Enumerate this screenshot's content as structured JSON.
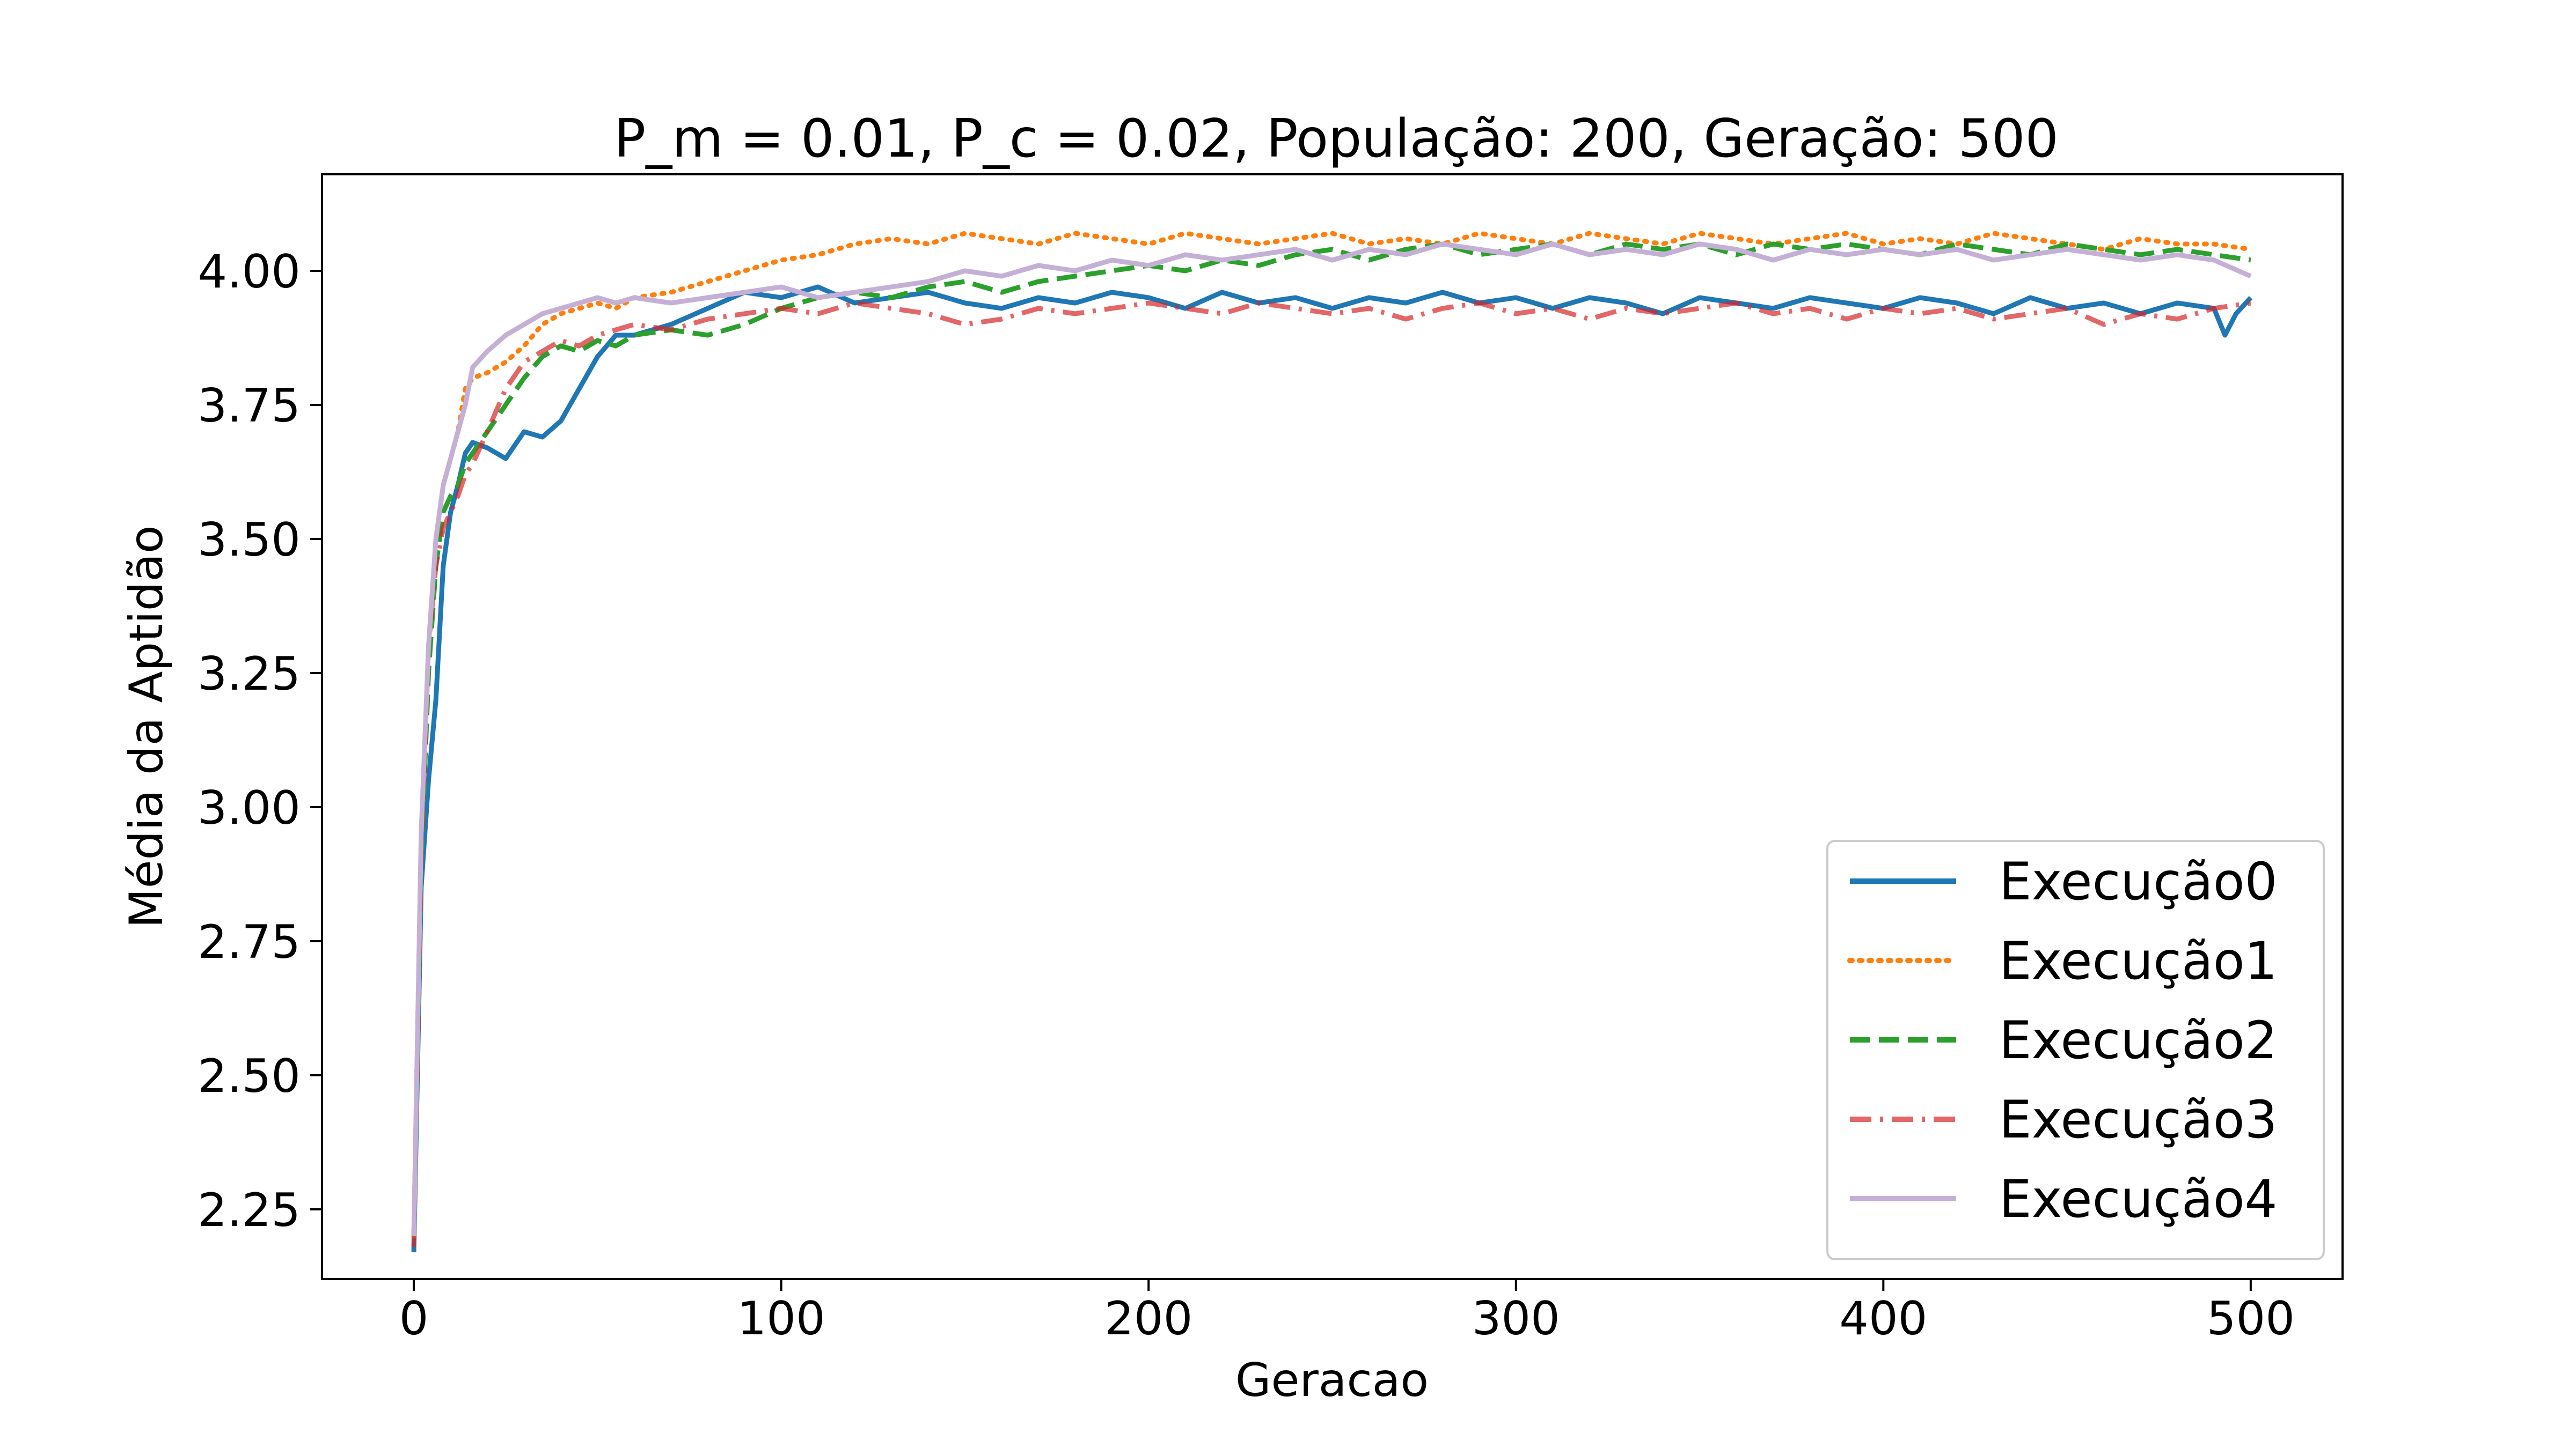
{
  "chart_data": {
    "type": "line",
    "title": "P_m = 0.01, P_c = 0.02, População: 200, Geração: 500",
    "xlabel": "Geracao",
    "ylabel": "Média da Aptidão",
    "xlim": [
      -25,
      525
    ],
    "ylim": [
      2.12,
      4.18
    ],
    "xticks": [
      0,
      100,
      200,
      300,
      400,
      500
    ],
    "yticks": [
      2.25,
      2.5,
      2.75,
      3.0,
      3.25,
      3.5,
      3.75,
      4.0
    ],
    "xtick_labels": [
      "0",
      "100",
      "200",
      "300",
      "400",
      "500"
    ],
    "ytick_labels": [
      "2.25",
      "2.50",
      "2.75",
      "3.00",
      "3.25",
      "3.50",
      "3.75",
      "4.00"
    ],
    "grid": false,
    "legend_position": "lower-right",
    "series": [
      {
        "name": "Execução0",
        "color": "#1f77b4",
        "style": "solid",
        "x": [
          0,
          2,
          4,
          6,
          8,
          10,
          12,
          14,
          16,
          20,
          25,
          30,
          35,
          40,
          45,
          50,
          55,
          60,
          70,
          80,
          90,
          100,
          110,
          120,
          130,
          140,
          150,
          160,
          170,
          180,
          190,
          200,
          210,
          220,
          230,
          240,
          250,
          260,
          270,
          280,
          290,
          300,
          310,
          320,
          330,
          340,
          350,
          360,
          370,
          380,
          390,
          400,
          410,
          420,
          430,
          440,
          450,
          460,
          470,
          480,
          490,
          493,
          496,
          500
        ],
        "y": [
          2.17,
          2.85,
          3.05,
          3.2,
          3.45,
          3.55,
          3.6,
          3.66,
          3.68,
          3.67,
          3.65,
          3.7,
          3.69,
          3.72,
          3.78,
          3.84,
          3.88,
          3.88,
          3.9,
          3.93,
          3.96,
          3.95,
          3.97,
          3.94,
          3.95,
          3.96,
          3.94,
          3.93,
          3.95,
          3.94,
          3.96,
          3.95,
          3.93,
          3.96,
          3.94,
          3.95,
          3.93,
          3.95,
          3.94,
          3.96,
          3.94,
          3.95,
          3.93,
          3.95,
          3.94,
          3.92,
          3.95,
          3.94,
          3.93,
          3.95,
          3.94,
          3.93,
          3.95,
          3.94,
          3.92,
          3.95,
          3.93,
          3.94,
          3.92,
          3.94,
          3.93,
          3.88,
          3.92,
          3.95
        ]
      },
      {
        "name": "Execução1",
        "color": "#ff7f0e",
        "style": "dotted",
        "x": [
          0,
          2,
          4,
          6,
          8,
          10,
          12,
          14,
          16,
          20,
          25,
          30,
          35,
          40,
          45,
          50,
          55,
          60,
          70,
          80,
          90,
          100,
          110,
          120,
          130,
          140,
          150,
          160,
          170,
          180,
          190,
          200,
          210,
          220,
          230,
          240,
          250,
          260,
          270,
          280,
          290,
          300,
          310,
          320,
          330,
          340,
          350,
          360,
          370,
          380,
          390,
          400,
          410,
          420,
          430,
          440,
          450,
          460,
          470,
          480,
          490,
          500
        ],
        "y": [
          2.2,
          2.95,
          3.3,
          3.5,
          3.6,
          3.65,
          3.7,
          3.78,
          3.8,
          3.81,
          3.83,
          3.86,
          3.9,
          3.92,
          3.93,
          3.94,
          3.93,
          3.95,
          3.96,
          3.98,
          4.0,
          4.02,
          4.03,
          4.05,
          4.06,
          4.05,
          4.07,
          4.06,
          4.05,
          4.07,
          4.06,
          4.05,
          4.07,
          4.06,
          4.05,
          4.06,
          4.07,
          4.05,
          4.06,
          4.05,
          4.07,
          4.06,
          4.05,
          4.07,
          4.06,
          4.05,
          4.07,
          4.06,
          4.05,
          4.06,
          4.07,
          4.05,
          4.06,
          4.05,
          4.07,
          4.06,
          4.05,
          4.04,
          4.06,
          4.05,
          4.05,
          4.04
        ]
      },
      {
        "name": "Execução2",
        "color": "#2ca02c",
        "style": "dashed",
        "x": [
          0,
          2,
          4,
          6,
          8,
          10,
          12,
          14,
          16,
          20,
          25,
          30,
          35,
          40,
          45,
          50,
          55,
          60,
          70,
          80,
          90,
          100,
          110,
          120,
          130,
          140,
          150,
          160,
          170,
          180,
          190,
          200,
          210,
          220,
          230,
          240,
          250,
          260,
          270,
          280,
          290,
          300,
          310,
          320,
          330,
          340,
          350,
          360,
          370,
          380,
          390,
          400,
          410,
          420,
          430,
          440,
          450,
          460,
          470,
          480,
          490,
          500
        ],
        "y": [
          2.2,
          2.9,
          3.25,
          3.45,
          3.55,
          3.58,
          3.6,
          3.64,
          3.66,
          3.7,
          3.75,
          3.8,
          3.84,
          3.86,
          3.85,
          3.87,
          3.86,
          3.88,
          3.89,
          3.88,
          3.9,
          3.93,
          3.95,
          3.96,
          3.95,
          3.97,
          3.98,
          3.96,
          3.98,
          3.99,
          4.0,
          4.01,
          4.0,
          4.02,
          4.01,
          4.03,
          4.04,
          4.02,
          4.04,
          4.05,
          4.03,
          4.04,
          4.05,
          4.03,
          4.05,
          4.04,
          4.05,
          4.03,
          4.05,
          4.04,
          4.05,
          4.04,
          4.03,
          4.05,
          4.04,
          4.03,
          4.05,
          4.04,
          4.03,
          4.04,
          4.03,
          4.02
        ]
      },
      {
        "name": "Execução3",
        "color": "#d62728",
        "style": "dashdot",
        "x": [
          0,
          2,
          4,
          6,
          8,
          10,
          12,
          14,
          16,
          20,
          25,
          30,
          35,
          40,
          45,
          50,
          55,
          60,
          70,
          80,
          90,
          100,
          110,
          120,
          130,
          140,
          150,
          160,
          170,
          180,
          190,
          200,
          210,
          220,
          230,
          240,
          250,
          260,
          270,
          280,
          290,
          300,
          310,
          320,
          330,
          340,
          350,
          360,
          370,
          380,
          390,
          400,
          410,
          420,
          430,
          440,
          450,
          460,
          470,
          480,
          490,
          500
        ],
        "y": [
          2.18,
          2.9,
          3.3,
          3.45,
          3.52,
          3.55,
          3.58,
          3.62,
          3.64,
          3.7,
          3.78,
          3.83,
          3.85,
          3.87,
          3.86,
          3.88,
          3.89,
          3.9,
          3.89,
          3.91,
          3.92,
          3.93,
          3.92,
          3.94,
          3.93,
          3.92,
          3.9,
          3.91,
          3.93,
          3.92,
          3.93,
          3.94,
          3.93,
          3.92,
          3.94,
          3.93,
          3.92,
          3.93,
          3.91,
          3.93,
          3.94,
          3.92,
          3.93,
          3.91,
          3.93,
          3.92,
          3.93,
          3.94,
          3.92,
          3.93,
          3.91,
          3.93,
          3.92,
          3.93,
          3.91,
          3.92,
          3.93,
          3.9,
          3.92,
          3.91,
          3.93,
          3.94
        ]
      },
      {
        "name": "Execução4",
        "color": "#c5b0d5",
        "style": "solid",
        "x": [
          0,
          2,
          4,
          6,
          8,
          10,
          12,
          14,
          16,
          20,
          25,
          30,
          35,
          40,
          45,
          50,
          55,
          60,
          70,
          80,
          90,
          100,
          110,
          120,
          130,
          140,
          150,
          160,
          170,
          180,
          190,
          200,
          210,
          220,
          230,
          240,
          250,
          260,
          270,
          280,
          290,
          300,
          310,
          320,
          330,
          340,
          350,
          360,
          370,
          380,
          390,
          400,
          410,
          420,
          430,
          440,
          450,
          460,
          470,
          480,
          490,
          500
        ],
        "y": [
          2.2,
          2.95,
          3.3,
          3.5,
          3.6,
          3.65,
          3.7,
          3.75,
          3.82,
          3.85,
          3.88,
          3.9,
          3.92,
          3.93,
          3.94,
          3.95,
          3.94,
          3.95,
          3.94,
          3.95,
          3.96,
          3.97,
          3.95,
          3.96,
          3.97,
          3.98,
          4.0,
          3.99,
          4.01,
          4.0,
          4.02,
          4.01,
          4.03,
          4.02,
          4.03,
          4.04,
          4.02,
          4.04,
          4.03,
          4.05,
          4.04,
          4.03,
          4.05,
          4.03,
          4.04,
          4.03,
          4.05,
          4.04,
          4.02,
          4.04,
          4.03,
          4.04,
          4.03,
          4.04,
          4.02,
          4.03,
          4.04,
          4.03,
          4.02,
          4.03,
          4.02,
          3.99
        ]
      }
    ]
  }
}
